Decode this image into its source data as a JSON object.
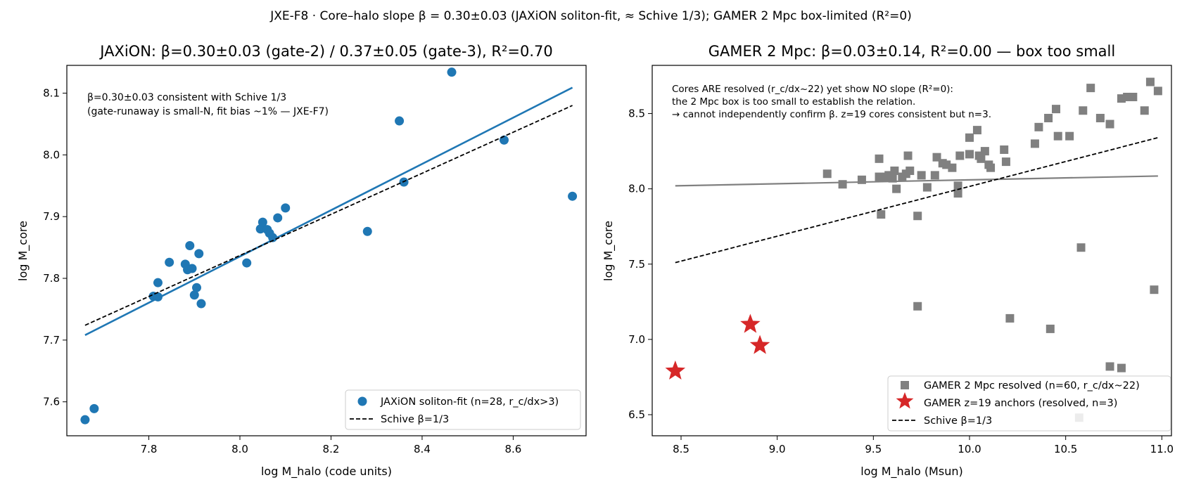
{
  "suptitle": "JXE-F8 · Core–halo slope β = 0.30±0.03 (JAXiON soliton-fit, ≈ Schive 1/3); GAMER 2 Mpc box-limited (R²=0)",
  "chart_data": [
    {
      "type": "scatter",
      "title": "JAXiON: β=0.30±0.03 (gate-2) / 0.37±0.05 (gate-3), R²=0.70",
      "xlabel": "log M_halo (code units)",
      "ylabel": "log M_core",
      "xlim": [
        7.62,
        8.76
      ],
      "ylim": [
        7.545,
        8.145
      ],
      "xticks": [
        "7.8",
        "8.0",
        "8.2",
        "8.4",
        "8.6"
      ],
      "xtick_values": [
        7.8,
        8.0,
        8.2,
        8.4,
        8.6
      ],
      "yticks": [
        "7.6",
        "7.7",
        "7.8",
        "7.9",
        "8.0",
        "8.1"
      ],
      "ytick_values": [
        7.6,
        7.7,
        7.8,
        7.9,
        8.0,
        8.1
      ],
      "annotation": [
        "β=0.30±0.03 consistent with Schive 1/3",
        "(gate-runaway is small-N, fit bias ~1% — JXE-F7)"
      ],
      "legend_position": "lower right",
      "series": [
        {
          "name": "JAXiON soliton-fit (n=28, r_c/dx>3)",
          "kind": "points",
          "marker": "circle",
          "color": "#1f77b4",
          "points": [
            [
              7.66,
              7.571
            ],
            [
              7.68,
              7.589
            ],
            [
              7.81,
              7.771
            ],
            [
              7.82,
              7.793
            ],
            [
              7.82,
              7.77
            ],
            [
              7.845,
              7.826
            ],
            [
              7.88,
              7.823
            ],
            [
              7.885,
              7.814
            ],
            [
              7.89,
              7.853
            ],
            [
              7.895,
              7.816
            ],
            [
              7.9,
              7.773
            ],
            [
              7.905,
              7.785
            ],
            [
              7.91,
              7.84
            ],
            [
              7.915,
              7.759
            ],
            [
              8.015,
              7.825
            ],
            [
              8.045,
              7.88
            ],
            [
              8.05,
              7.891
            ],
            [
              8.06,
              7.879
            ],
            [
              8.065,
              7.873
            ],
            [
              8.072,
              7.866
            ],
            [
              8.083,
              7.898
            ],
            [
              8.1,
              7.914
            ],
            [
              8.28,
              7.876
            ],
            [
              8.35,
              8.055
            ],
            [
              8.36,
              7.956
            ],
            [
              8.465,
              8.134
            ],
            [
              8.58,
              8.024
            ],
            [
              8.73,
              7.933
            ]
          ]
        },
        {
          "name": "",
          "kind": "line",
          "dash": false,
          "color": "#1f77b4",
          "width": 2.6,
          "line": [
            [
              7.66,
              7.708
            ],
            [
              8.73,
              8.109
            ]
          ]
        },
        {
          "name": "Schive β=1/3",
          "kind": "line",
          "dash": true,
          "color": "#000000",
          "width": 1.8,
          "line": [
            [
              7.66,
              7.724
            ],
            [
              8.73,
              8.08
            ]
          ]
        }
      ]
    },
    {
      "type": "scatter",
      "title": "GAMER 2 Mpc: β=0.03±0.14, R²=0.00 — box too small",
      "xlabel": "log M_halo (Msun)",
      "ylabel": "log M_core",
      "xlim": [
        8.35,
        11.05
      ],
      "ylim": [
        6.36,
        8.82
      ],
      "xticks": [
        "8.5",
        "9.0",
        "9.5",
        "10.0",
        "10.5",
        "11.0"
      ],
      "xtick_values": [
        8.5,
        9.0,
        9.5,
        10.0,
        10.5,
        11.0
      ],
      "yticks": [
        "6.5",
        "7.0",
        "7.5",
        "8.0",
        "8.5"
      ],
      "ytick_values": [
        6.5,
        7.0,
        7.5,
        8.0,
        8.5
      ],
      "annotation": [
        "Cores ARE resolved (r_c/dx~22) yet show NO slope (R²=0):",
        "the 2 Mpc box is too small to establish the relation.",
        "→ cannot independently confirm β. z=19 cores consistent but n=3."
      ],
      "legend_position": "lower right",
      "series": [
        {
          "name": "GAMER 2 Mpc resolved (n=60, r_c/dx~22)",
          "kind": "points",
          "marker": "square",
          "color": "#808080",
          "points": [
            [
              9.26,
              8.1
            ],
            [
              9.34,
              8.03
            ],
            [
              9.44,
              8.06
            ],
            [
              9.53,
              8.2
            ],
            [
              9.53,
              8.08
            ],
            [
              9.54,
              7.83
            ],
            [
              9.57,
              8.08
            ],
            [
              9.6,
              8.07
            ],
            [
              9.61,
              8.12
            ],
            [
              9.62,
              8.0
            ],
            [
              9.65,
              8.08
            ],
            [
              9.67,
              8.1
            ],
            [
              9.68,
              8.22
            ],
            [
              9.69,
              8.12
            ],
            [
              9.73,
              7.82
            ],
            [
              9.73,
              7.22
            ],
            [
              9.75,
              8.09
            ],
            [
              9.78,
              8.01
            ],
            [
              9.82,
              8.09
            ],
            [
              9.83,
              8.21
            ],
            [
              9.86,
              8.17
            ],
            [
              9.91,
              8.14
            ],
            [
              9.94,
              8.02
            ],
            [
              9.94,
              7.97
            ],
            [
              9.95,
              8.22
            ],
            [
              10.0,
              8.34
            ],
            [
              10.04,
              8.39
            ],
            [
              10.05,
              8.22
            ],
            [
              10.06,
              8.2
            ],
            [
              10.08,
              8.25
            ],
            [
              10.1,
              8.16
            ],
            [
              10.11,
              8.14
            ],
            [
              10.18,
              8.26
            ],
            [
              10.19,
              8.18
            ],
            [
              10.21,
              7.14
            ],
            [
              10.34,
              8.3
            ],
            [
              10.36,
              8.41
            ],
            [
              10.41,
              8.47
            ],
            [
              10.42,
              7.07
            ],
            [
              10.45,
              8.53
            ],
            [
              10.46,
              8.35
            ],
            [
              10.52,
              8.35
            ],
            [
              10.57,
              6.48
            ],
            [
              10.58,
              7.61
            ],
            [
              10.59,
              8.52
            ],
            [
              10.63,
              8.67
            ],
            [
              10.68,
              8.47
            ],
            [
              10.73,
              8.43
            ],
            [
              10.73,
              6.82
            ],
            [
              10.79,
              8.6
            ],
            [
              10.79,
              6.81
            ],
            [
              10.82,
              8.61
            ],
            [
              10.85,
              8.61
            ],
            [
              10.91,
              8.52
            ],
            [
              10.94,
              8.71
            ],
            [
              10.96,
              7.33
            ],
            [
              10.98,
              8.65
            ],
            [
              9.58,
              8.09
            ],
            [
              10.0,
              8.23
            ],
            [
              9.88,
              8.16
            ]
          ]
        },
        {
          "name": "GAMER z=19 anchors (resolved, n=3)",
          "kind": "points",
          "marker": "star",
          "color": "#d62728",
          "points": [
            [
              8.47,
              6.79
            ],
            [
              8.86,
              7.1
            ],
            [
              8.91,
              6.96
            ]
          ]
        },
        {
          "name": "",
          "kind": "line",
          "dash": false,
          "color": "#808080",
          "width": 2.2,
          "line": [
            [
              8.47,
              8.02
            ],
            [
              10.98,
              8.085
            ]
          ]
        },
        {
          "name": "Schive β=1/3",
          "kind": "line",
          "dash": true,
          "color": "#000000",
          "width": 1.8,
          "line": [
            [
              8.47,
              7.51
            ],
            [
              10.98,
              8.34
            ]
          ]
        }
      ]
    }
  ]
}
